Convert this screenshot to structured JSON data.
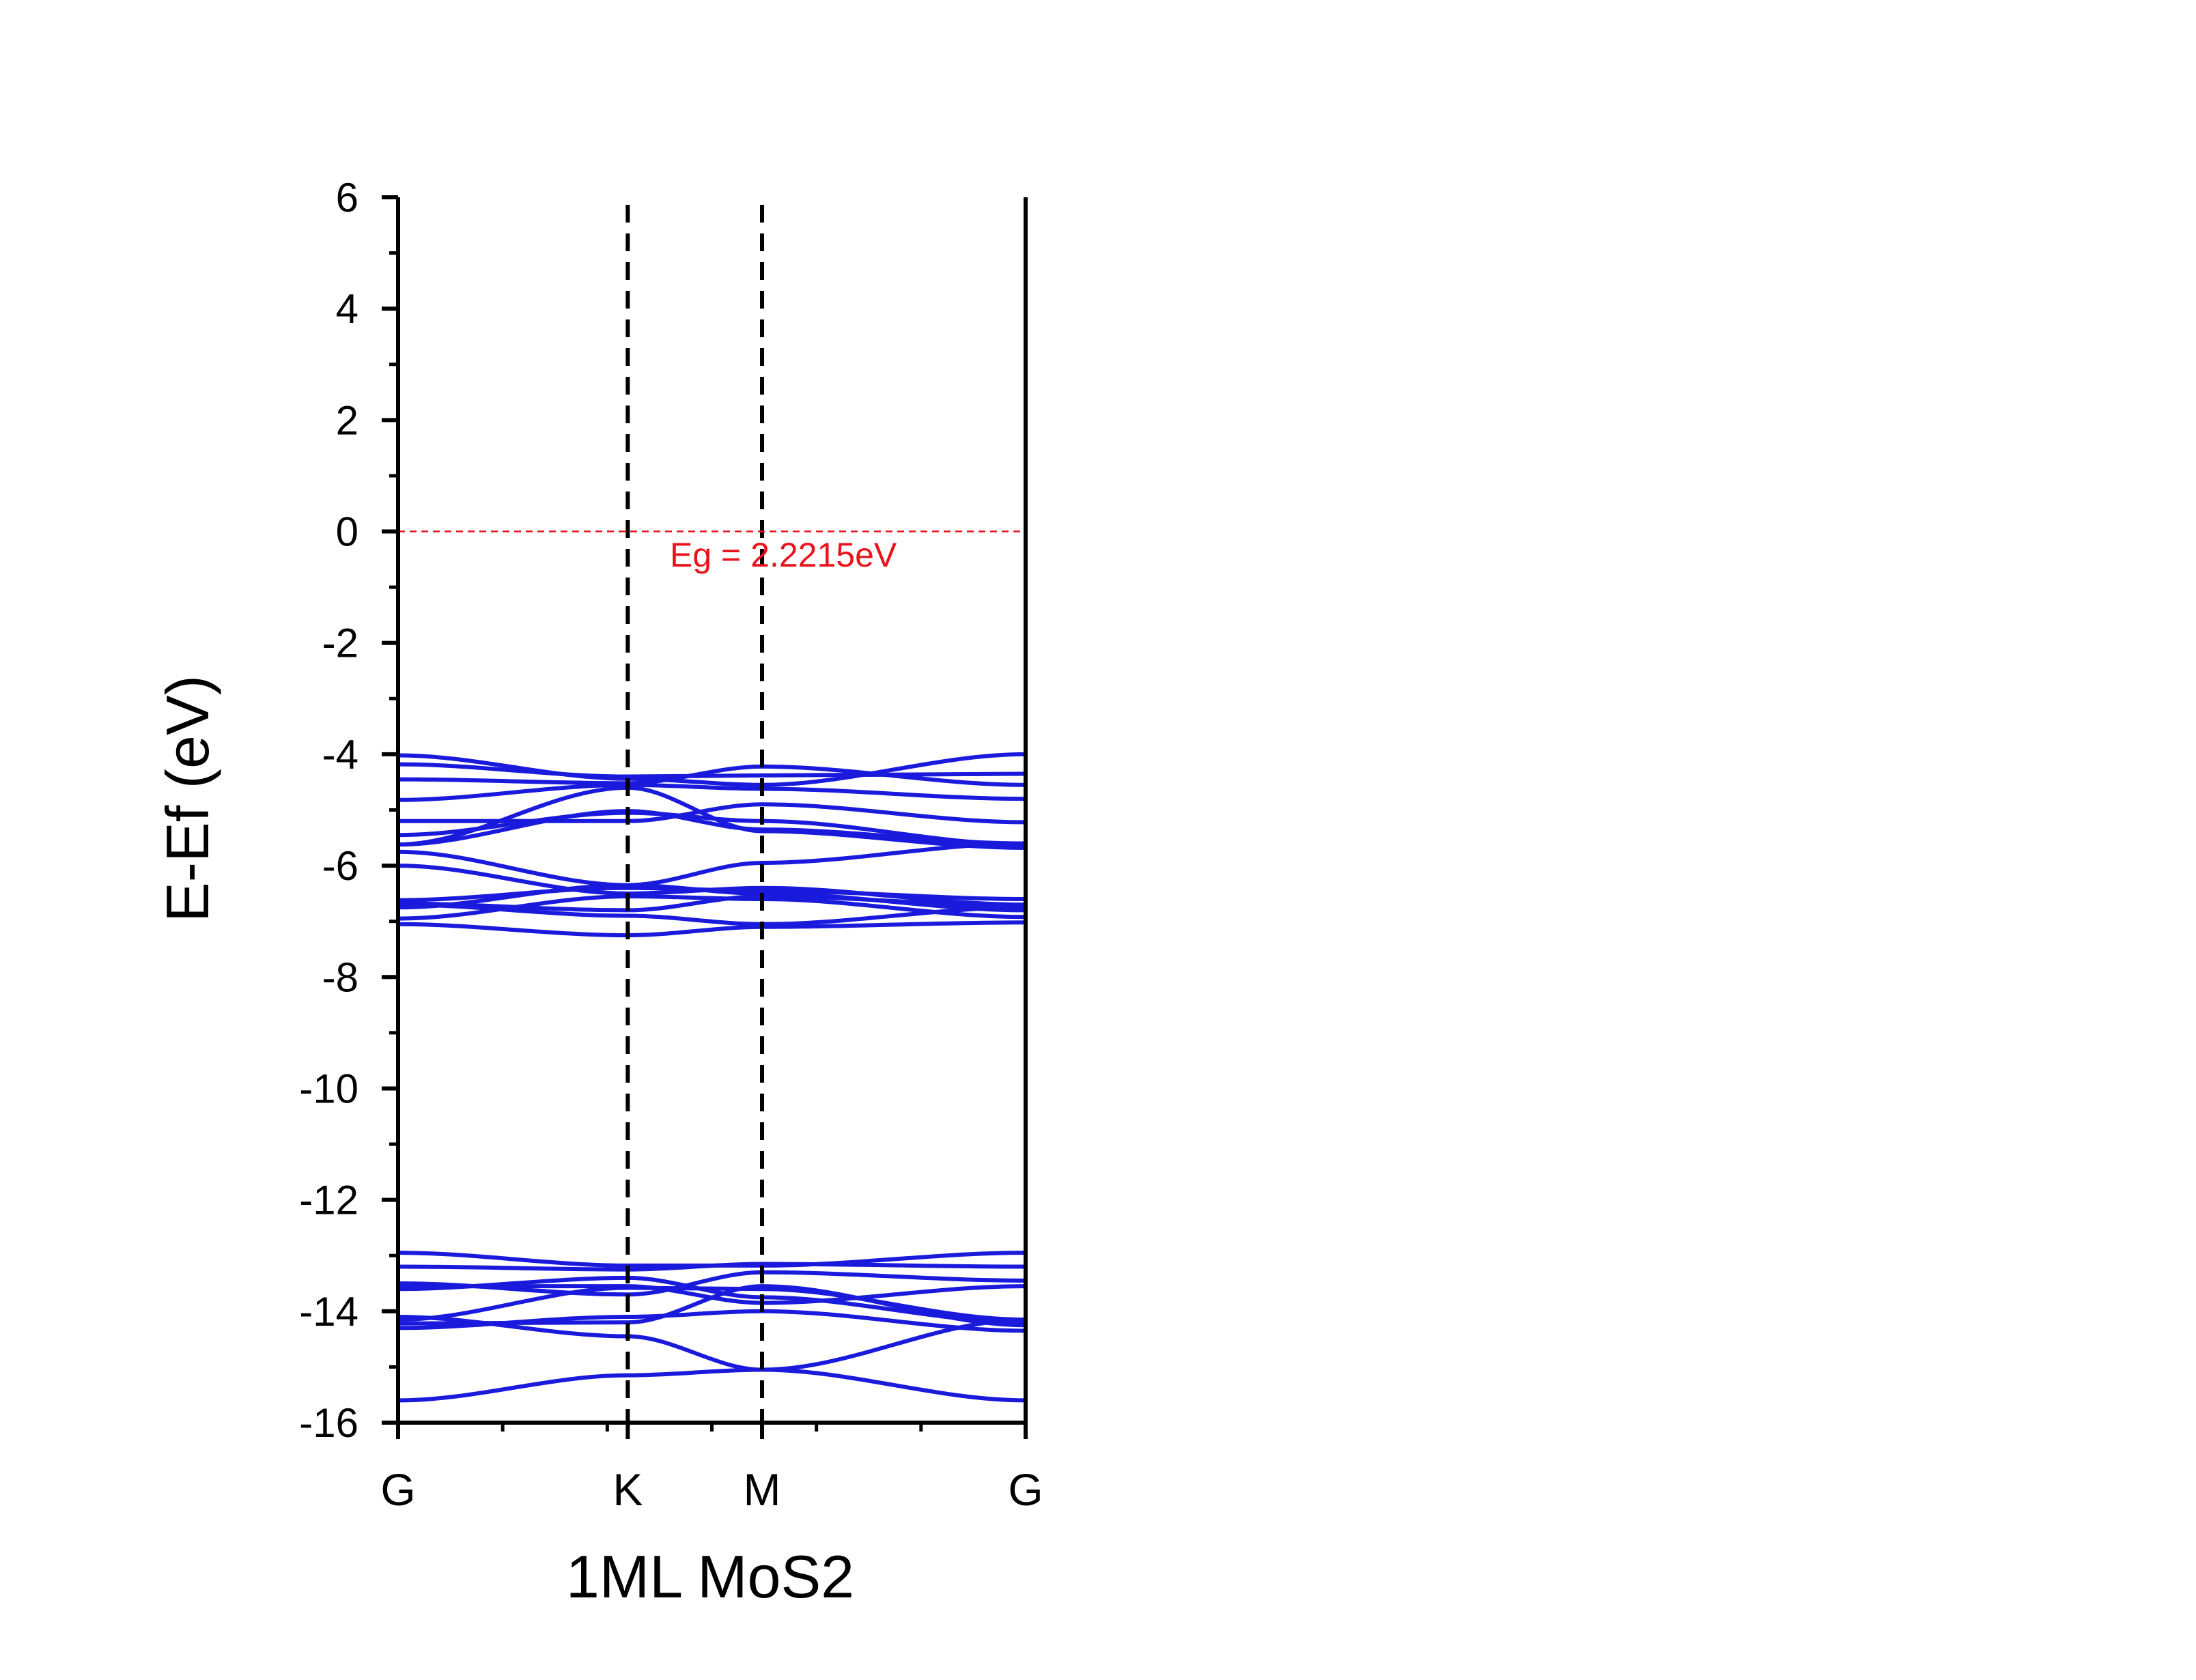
{
  "chart_data": {
    "type": "line",
    "title": "",
    "xlabel": "1ML MoS2",
    "ylabel": "E-Ef (eV)",
    "ylim": [
      -16,
      6
    ],
    "yticks": [
      6,
      4,
      2,
      0,
      -2,
      -4,
      -6,
      -8,
      -10,
      -12,
      -14,
      -16
    ],
    "ytick_labels": [
      "6",
      "4",
      "2",
      "0",
      "-2",
      "-4",
      "-6",
      "-8",
      "-10",
      "-12",
      "-14",
      "-16"
    ],
    "xlim": [
      0,
      1
    ],
    "k_points": [
      {
        "label": "G",
        "x": 0.0
      },
      {
        "label": "K",
        "x": 0.366
      },
      {
        "label": "M",
        "x": 0.58
      },
      {
        "label": "G",
        "x": 1.0
      }
    ],
    "fermi_level": {
      "y": 0
    },
    "annotation": "Eg = 2.2215eV",
    "colors": {
      "bands": "#1a1adc",
      "fermi": "#e8141c",
      "annotation": "#e8141c",
      "axis": "#000000"
    },
    "series": [
      {
        "values": [
          -4.02,
          -4.44,
          -4.55,
          -4.0
        ]
      },
      {
        "values": [
          -4.18,
          -4.4,
          -4.38,
          -4.35
        ]
      },
      {
        "values": [
          -4.45,
          -4.52,
          -4.22,
          -4.55
        ]
      },
      {
        "values": [
          -4.82,
          -4.55,
          -4.62,
          -4.8
        ]
      },
      {
        "values": [
          -5.2,
          -5.2,
          -4.9,
          -5.22
        ]
      },
      {
        "values": [
          -5.45,
          -5.05,
          -5.2,
          -5.62
        ]
      },
      {
        "values": [
          -5.62,
          -5.02,
          -5.35,
          -5.6
        ]
      },
      {
        "values": [
          -5.62,
          -4.6,
          -5.38,
          -5.68
        ]
      },
      {
        "values": [
          -5.75,
          -6.35,
          -5.95,
          -5.6
        ]
      },
      {
        "values": [
          -6.0,
          -6.5,
          -6.4,
          -6.7
        ]
      },
      {
        "values": [
          -6.62,
          -6.4,
          -6.45,
          -6.6
        ]
      },
      {
        "values": [
          -6.68,
          -6.8,
          -6.55,
          -6.72
        ]
      },
      {
        "values": [
          -6.75,
          -6.35,
          -6.5,
          -6.8
        ]
      },
      {
        "values": [
          -6.95,
          -6.55,
          -6.6,
          -6.92
        ]
      },
      {
        "values": [
          -7.05,
          -7.25,
          -7.1,
          -7.02
        ]
      },
      {
        "values": [
          -6.7,
          -6.9,
          -7.05,
          -6.75
        ]
      },
      {
        "values": [
          -12.95,
          -13.18,
          -13.18,
          -12.95
        ]
      },
      {
        "values": [
          -13.2,
          -13.25,
          -13.15,
          -13.2
        ]
      },
      {
        "values": [
          -13.5,
          -13.7,
          -13.3,
          -13.45
        ]
      },
      {
        "values": [
          -13.55,
          -13.55,
          -13.85,
          -13.55
        ]
      },
      {
        "values": [
          -13.6,
          -13.4,
          -13.75,
          -14.2
        ]
      },
      {
        "values": [
          -14.15,
          -13.58,
          -13.6,
          -14.15
        ]
      },
      {
        "values": [
          -14.22,
          -14.2,
          -13.55,
          -14.25
        ]
      },
      {
        "values": [
          -14.3,
          -14.1,
          -14.0,
          -14.35
        ]
      },
      {
        "values": [
          -14.1,
          -14.45,
          -15.05,
          -14.15
        ]
      },
      {
        "values": [
          -15.6,
          -15.15,
          -15.05,
          -15.6
        ]
      }
    ]
  }
}
